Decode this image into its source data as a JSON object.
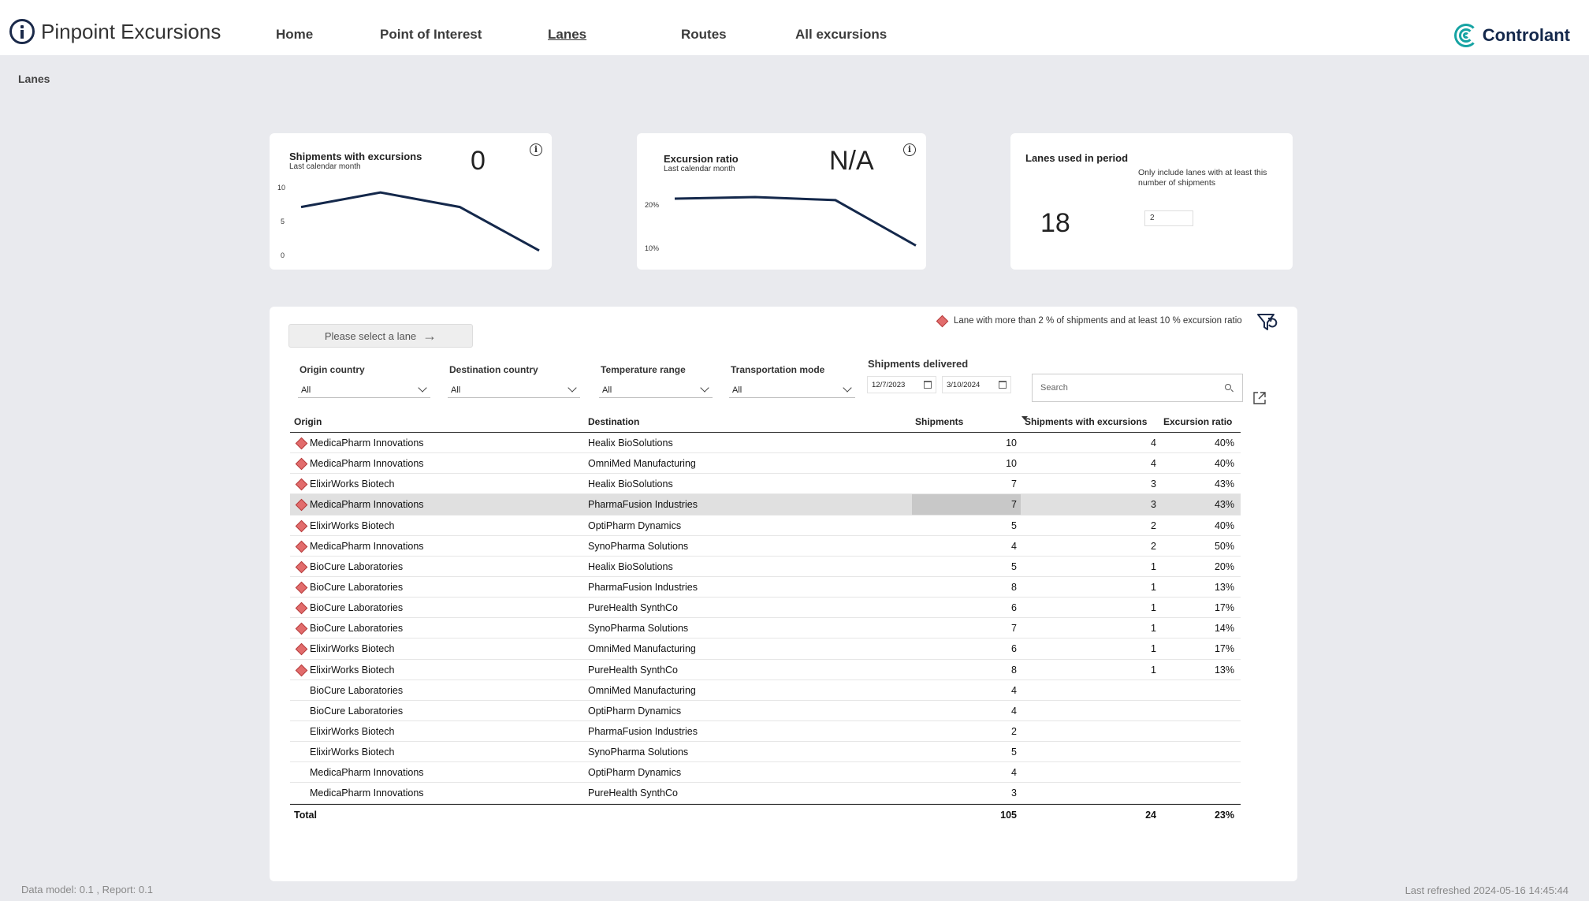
{
  "app": {
    "title": "Pinpoint Excursions",
    "logo_text": "Controlant"
  },
  "nav": [
    {
      "label": "Home",
      "active": false
    },
    {
      "label": "Point of Interest",
      "active": false
    },
    {
      "label": "Lanes",
      "active": true
    },
    {
      "label": "Routes",
      "active": false
    },
    {
      "label": "All excursions",
      "active": false
    }
  ],
  "breadcrumb": "Lanes",
  "cards": {
    "shipments": {
      "title": "Shipments with excursions",
      "subtitle": "Last calendar month",
      "value": "0",
      "ticks": [
        "10",
        "5",
        "0"
      ]
    },
    "ratio": {
      "title": "Excursion ratio",
      "subtitle": "Last calendar month",
      "value": "N/A",
      "ticks": [
        "20%",
        "10%"
      ]
    },
    "lanes": {
      "title": "Lanes used in period",
      "value": "18",
      "threshold_label": "Only include lanes with at least this number of shipments",
      "threshold_value": "2"
    }
  },
  "chart_data": [
    {
      "type": "line",
      "title": "Shipments with excursions",
      "series": [
        {
          "values": [
            7,
            9,
            7,
            1
          ]
        }
      ],
      "ylim": [
        0,
        10
      ],
      "yticks": [
        "10",
        "5",
        "0"
      ]
    },
    {
      "type": "line",
      "title": "Excursion ratio",
      "series": [
        {
          "values": [
            23.5,
            24,
            23,
            8
          ]
        }
      ],
      "ylim": [
        5,
        30
      ],
      "yticks": [
        "20%",
        "10%"
      ]
    }
  ],
  "panel": {
    "select_lane_label": "Please select a lane",
    "legend_text": "Lane with more than 2 % of shipments and at least 10 % excursion ratio",
    "legend_color": "#e26c6c",
    "filters": {
      "origin": {
        "label": "Origin country",
        "value": "All"
      },
      "destination": {
        "label": "Destination country",
        "value": "All"
      },
      "temperature": {
        "label": "Temperature range",
        "value": "All"
      },
      "transport": {
        "label": "Transportation mode",
        "value": "All"
      },
      "shipments_delivered": {
        "label": "Shipments delivered",
        "from": "12/7/2023",
        "to": "3/10/2024"
      }
    },
    "search_placeholder": "Search"
  },
  "table": {
    "headers": {
      "origin": "Origin",
      "destination": "Destination",
      "shipments": "Shipments",
      "with_exc": "Shipments with excursions",
      "ratio": "Excursion ratio"
    },
    "rows": [
      {
        "flag": true,
        "origin": "MedicaPharm Innovations",
        "destination": "Healix BioSolutions",
        "shipments": "10",
        "with_exc": "4",
        "ratio": "40%"
      },
      {
        "flag": true,
        "origin": "MedicaPharm Innovations",
        "destination": "OmniMed Manufacturing",
        "shipments": "10",
        "with_exc": "4",
        "ratio": "40%"
      },
      {
        "flag": true,
        "origin": "ElixirWorks Biotech",
        "destination": "Healix BioSolutions",
        "shipments": "7",
        "with_exc": "3",
        "ratio": "43%"
      },
      {
        "flag": true,
        "origin": "MedicaPharm Innovations",
        "destination": "PharmaFusion Industries",
        "shipments": "7",
        "with_exc": "3",
        "ratio": "43%",
        "selected": true
      },
      {
        "flag": true,
        "origin": "ElixirWorks Biotech",
        "destination": "OptiPharm Dynamics",
        "shipments": "5",
        "with_exc": "2",
        "ratio": "40%"
      },
      {
        "flag": true,
        "origin": "MedicaPharm Innovations",
        "destination": "SynoPharma Solutions",
        "shipments": "4",
        "with_exc": "2",
        "ratio": "50%"
      },
      {
        "flag": true,
        "origin": "BioCure Laboratories",
        "destination": "Healix BioSolutions",
        "shipments": "5",
        "with_exc": "1",
        "ratio": "20%"
      },
      {
        "flag": true,
        "origin": "BioCure Laboratories",
        "destination": "PharmaFusion Industries",
        "shipments": "8",
        "with_exc": "1",
        "ratio": "13%"
      },
      {
        "flag": true,
        "origin": "BioCure Laboratories",
        "destination": "PureHealth SynthCo",
        "shipments": "6",
        "with_exc": "1",
        "ratio": "17%"
      },
      {
        "flag": true,
        "origin": "BioCure Laboratories",
        "destination": "SynoPharma Solutions",
        "shipments": "7",
        "with_exc": "1",
        "ratio": "14%"
      },
      {
        "flag": true,
        "origin": "ElixirWorks Biotech",
        "destination": "OmniMed Manufacturing",
        "shipments": "6",
        "with_exc": "1",
        "ratio": "17%"
      },
      {
        "flag": true,
        "origin": "ElixirWorks Biotech",
        "destination": "PureHealth SynthCo",
        "shipments": "8",
        "with_exc": "1",
        "ratio": "13%"
      },
      {
        "flag": false,
        "origin": "BioCure Laboratories",
        "destination": "OmniMed Manufacturing",
        "shipments": "4",
        "with_exc": "",
        "ratio": ""
      },
      {
        "flag": false,
        "origin": "BioCure Laboratories",
        "destination": "OptiPharm Dynamics",
        "shipments": "4",
        "with_exc": "",
        "ratio": ""
      },
      {
        "flag": false,
        "origin": "ElixirWorks Biotech",
        "destination": "PharmaFusion Industries",
        "shipments": "2",
        "with_exc": "",
        "ratio": ""
      },
      {
        "flag": false,
        "origin": "ElixirWorks Biotech",
        "destination": "SynoPharma Solutions",
        "shipments": "5",
        "with_exc": "",
        "ratio": ""
      },
      {
        "flag": false,
        "origin": "MedicaPharm Innovations",
        "destination": "OptiPharm Dynamics",
        "shipments": "4",
        "with_exc": "",
        "ratio": ""
      },
      {
        "flag": false,
        "origin": "MedicaPharm Innovations",
        "destination": "PureHealth SynthCo",
        "shipments": "3",
        "with_exc": "",
        "ratio": ""
      }
    ],
    "total": {
      "label": "Total",
      "shipments": "105",
      "with_exc": "24",
      "ratio": "23%"
    }
  },
  "footer": {
    "left": "Data model: 0.1 , Report: 0.1",
    "right": "Last refreshed 2024-05-16 14:45:44"
  }
}
